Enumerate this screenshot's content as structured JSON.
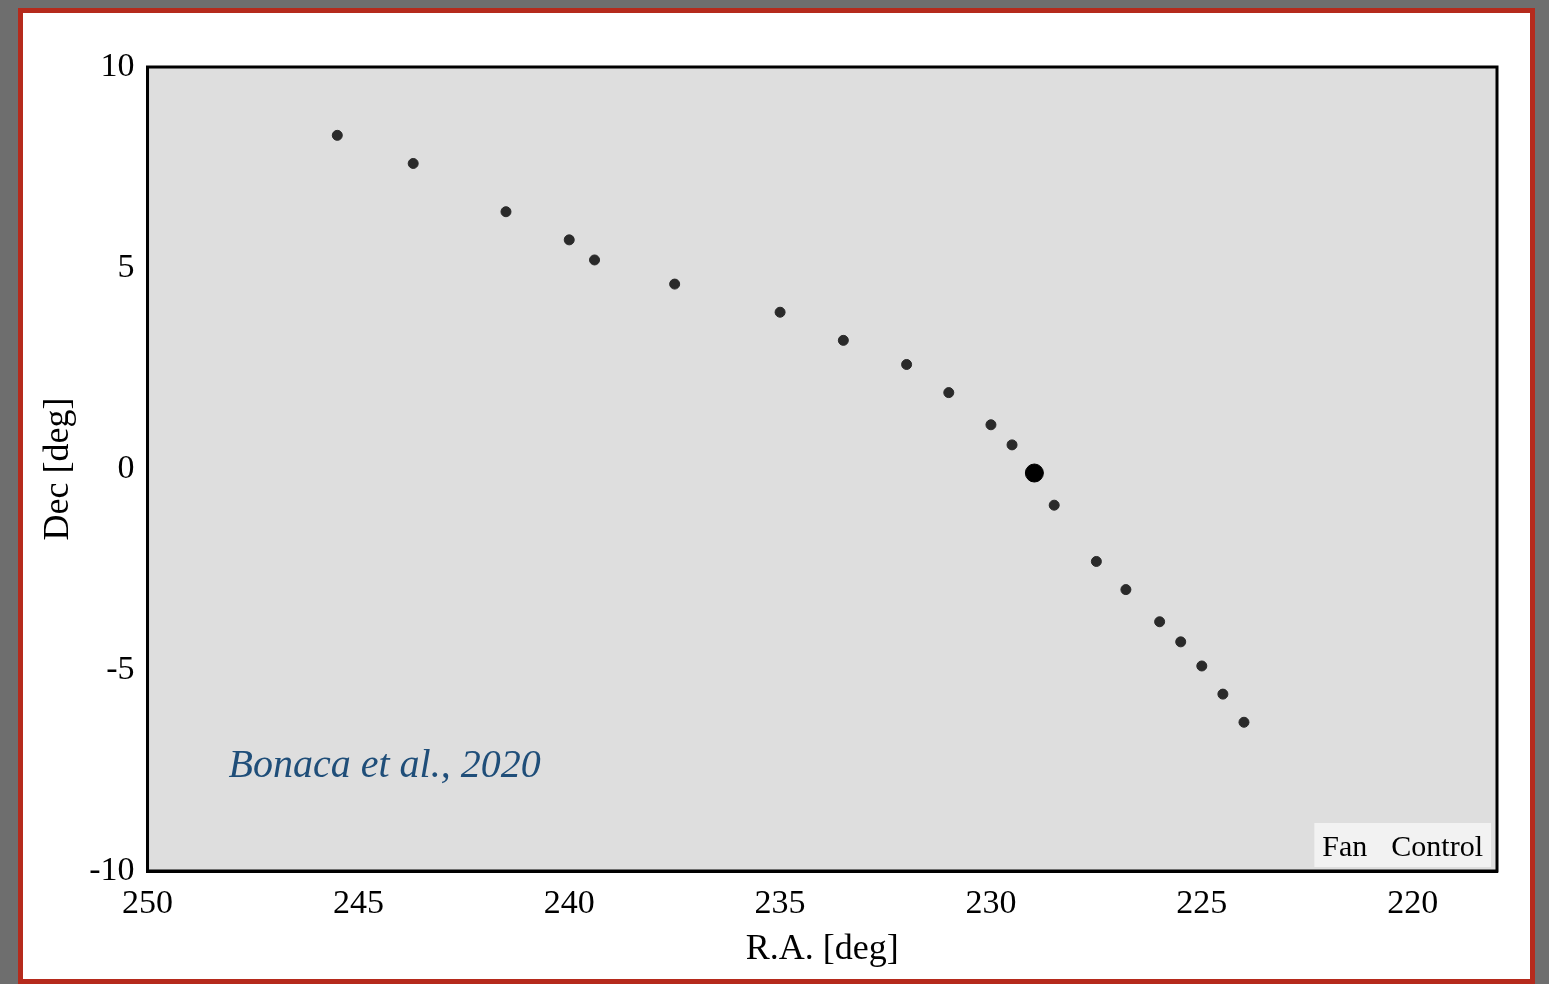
{
  "chart_data": {
    "type": "scatter",
    "x_label": "R.A. [deg]",
    "y_label": "Dec [deg]",
    "annotations": [
      "Bonaca et al., 2020",
      "Fan",
      "Control"
    ],
    "xlim": [
      250,
      218
    ],
    "xticks": [
      250,
      245,
      240,
      235,
      230,
      225,
      220
    ],
    "ylim": [
      -10,
      10
    ],
    "yticks": [
      -10,
      -5,
      0,
      5,
      10
    ],
    "grid": false,
    "series": [
      {
        "x": [
          245.5,
          243.7,
          241.5,
          240,
          239.4,
          237.5,
          235,
          233.5,
          232,
          231,
          230,
          229.5,
          228.5,
          227.5,
          226.8,
          226,
          225.5,
          225,
          224.5,
          224
        ],
        "values": [
          8.3,
          7.6,
          6.4,
          5.7,
          5.2,
          4.6,
          3.9,
          3.2,
          2.6,
          1.9,
          1.1,
          0.6,
          -0.9,
          -2.3,
          -3.0,
          -3.8,
          -4.3,
          -4.9,
          -5.6,
          -6.3
        ],
        "color": "#2a2a2a",
        "marker": "circle"
      },
      {
        "x": [
          228.97
        ],
        "values": [
          -0.1
        ],
        "color": "#000000",
        "marker": "circle"
      }
    ]
  }
}
